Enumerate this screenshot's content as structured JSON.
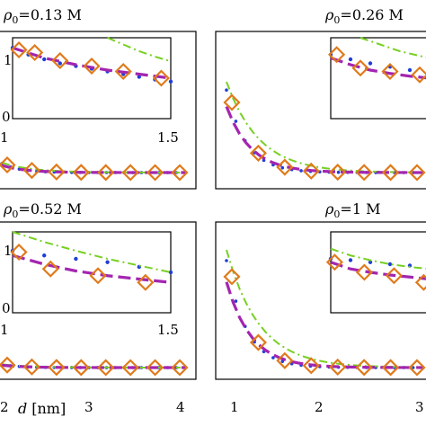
{
  "chart_data": [
    {
      "type": "scatter",
      "panel": "top-left",
      "title_rho": "ρ",
      "title_sub": "0",
      "title_value": "=0.13 M",
      "inset": {
        "xlim": [
          1,
          1.5
        ],
        "ylim": [
          0,
          1.2
        ],
        "xticks": [
          "1",
          "1.5"
        ],
        "yticks": [
          "0",
          "1"
        ],
        "series": [
          {
            "style": "dots",
            "color": "#1f3fd6",
            "x": [
              1.0,
              1.05,
              1.1,
              1.15,
              1.2,
              1.25,
              1.3,
              1.35,
              1.4,
              1.45,
              1.5
            ],
            "y": [
              1.05,
              0.95,
              0.88,
              0.82,
              0.78,
              0.74,
              0.7,
              0.66,
              0.62,
              0.58,
              0.55
            ]
          },
          {
            "style": "dashdot",
            "color": "#77d022",
            "x": [
              1.3,
              1.35,
              1.4,
              1.45,
              1.5
            ],
            "y": [
              1.2,
              1.1,
              1.0,
              0.92,
              0.85
            ]
          },
          {
            "style": "dashed",
            "color": "#a325b0",
            "x": [
              1.0,
              1.1,
              1.2,
              1.3,
              1.4,
              1.5
            ],
            "y": [
              1.05,
              0.9,
              0.8,
              0.72,
              0.66,
              0.6
            ]
          },
          {
            "style": "diamonds",
            "color": "#e07a1a",
            "x": [
              1.02,
              1.07,
              1.15,
              1.25,
              1.35,
              1.47
            ],
            "y": [
              1.02,
              0.98,
              0.86,
              0.78,
              0.7,
              0.6
            ]
          }
        ]
      }
    },
    {
      "type": "scatter",
      "panel": "top-right",
      "title_rho": "ρ",
      "title_sub": "0",
      "title_value": "=0.26 M",
      "inset": {
        "xlim": [
          1,
          1.5
        ],
        "ylim": [
          0,
          1.2
        ],
        "series": [
          {
            "style": "dots",
            "color": "#1f3fd6",
            "x": [
              1.0,
              1.1,
              1.2,
              1.3,
              1.4,
              1.5
            ],
            "y": [
              0.95,
              0.88,
              0.82,
              0.77,
              0.72,
              0.68
            ]
          },
          {
            "style": "dashdot",
            "color": "#77d022",
            "x": [
              1.15,
              1.25,
              1.35,
              1.45,
              1.5
            ],
            "y": [
              1.2,
              1.1,
              1.0,
              0.93,
              0.9
            ]
          },
          {
            "style": "dashed",
            "color": "#a325b0",
            "x": [
              1.0,
              1.1,
              1.2,
              1.3,
              1.4,
              1.5
            ],
            "y": [
              0.9,
              0.8,
              0.72,
              0.67,
              0.63,
              0.6
            ]
          },
          {
            "style": "diamonds",
            "color": "#e07a1a",
            "x": [
              1.03,
              1.15,
              1.3,
              1.45
            ],
            "y": [
              0.95,
              0.75,
              0.7,
              0.65
            ]
          }
        ]
      }
    },
    {
      "type": "scatter",
      "panel": "bottom-left",
      "title_rho": "ρ",
      "title_sub": "0",
      "title_value": "=0.52 M",
      "inset": {
        "xlim": [
          1,
          1.5
        ],
        "ylim": [
          0,
          1.2
        ],
        "xticks": [
          "1",
          "1.5"
        ],
        "yticks": [
          "0",
          "1"
        ],
        "series": [
          {
            "style": "dots",
            "color": "#1f3fd6",
            "x": [
              1.0,
              1.1,
              1.2,
              1.3,
              1.4,
              1.5
            ],
            "y": [
              0.92,
              0.85,
              0.8,
              0.75,
              0.68,
              0.6
            ]
          },
          {
            "style": "dashdot",
            "color": "#77d022",
            "x": [
              1.0,
              1.1,
              1.2,
              1.3,
              1.4,
              1.5
            ],
            "y": [
              1.2,
              1.05,
              0.92,
              0.8,
              0.7,
              0.6
            ]
          },
          {
            "style": "dashed",
            "color": "#a325b0",
            "x": [
              1.0,
              1.1,
              1.2,
              1.3,
              1.4,
              1.5
            ],
            "y": [
              0.85,
              0.72,
              0.62,
              0.55,
              0.5,
              0.45
            ]
          },
          {
            "style": "diamonds",
            "color": "#e07a1a",
            "x": [
              1.02,
              1.12,
              1.27,
              1.42
            ],
            "y": [
              0.9,
              0.65,
              0.55,
              0.45
            ]
          }
        ]
      }
    },
    {
      "type": "scatter",
      "panel": "bottom-right",
      "title_rho": "ρ",
      "title_sub": "0",
      "title_value": "=1 M",
      "inset": {
        "xlim": [
          1,
          1.5
        ],
        "ylim": [
          0,
          1.2
        ],
        "series": [
          {
            "style": "dots",
            "color": "#1f3fd6",
            "x": [
              1.0,
              1.1,
              1.2,
              1.3,
              1.4,
              1.5
            ],
            "y": [
              0.8,
              0.78,
              0.75,
              0.72,
              0.7,
              0.68
            ]
          },
          {
            "style": "dashdot",
            "color": "#77d022",
            "x": [
              1.0,
              1.1,
              1.2,
              1.3,
              1.4,
              1.5
            ],
            "y": [
              0.95,
              0.85,
              0.78,
              0.72,
              0.68,
              0.65
            ]
          },
          {
            "style": "dashed",
            "color": "#a325b0",
            "x": [
              1.0,
              1.1,
              1.2,
              1.3,
              1.4,
              1.5
            ],
            "y": [
              0.75,
              0.65,
              0.6,
              0.56,
              0.53,
              0.5
            ]
          },
          {
            "style": "diamonds",
            "color": "#e07a1a",
            "x": [
              1.02,
              1.17,
              1.32,
              1.47
            ],
            "y": [
              0.75,
              0.6,
              0.55,
              0.45
            ]
          }
        ]
      }
    }
  ],
  "bottom_axis": {
    "xlabel_italic": "d",
    "xlabel_unit": "[nm]",
    "left_ticks": [
      "2",
      "3",
      "4"
    ],
    "right_ticks": [
      "1",
      "2",
      "3"
    ]
  },
  "colors": {
    "dots": "#1f3fd6",
    "dashdot": "#77d022",
    "dashed": "#a325b0",
    "diamonds": "#e07a1a"
  }
}
